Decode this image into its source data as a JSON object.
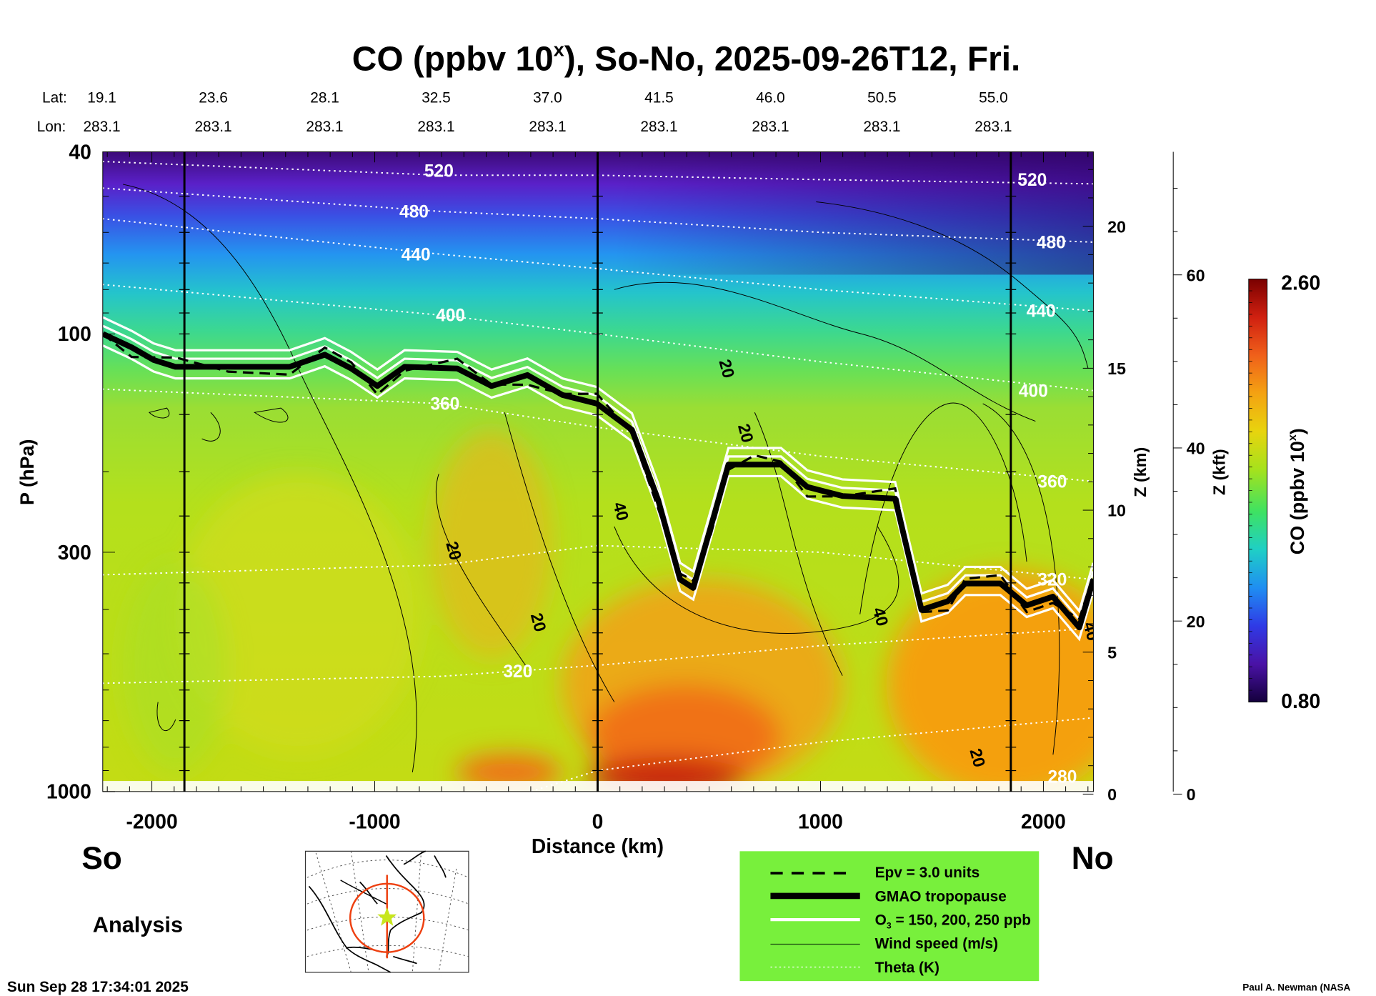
{
  "chart_data": {
    "type": "heatmap",
    "title_prefix": "CO (ppbv 10",
    "title_sup": "x",
    "title_suffix": "), So-No, 2025-09-26T12, Fri.",
    "lat_label": "Lat:",
    "lon_label": "Lon:",
    "lat_values": [
      "19.1",
      "23.6",
      "28.1",
      "32.5",
      "37.0",
      "41.5",
      "46.0",
      "50.5",
      "55.0"
    ],
    "lon_values": [
      "283.1",
      "283.1",
      "283.1",
      "283.1",
      "283.1",
      "283.1",
      "283.1",
      "283.1",
      "283.1"
    ],
    "xlabel": "Distance (km)",
    "ylabel": "P (hPa)",
    "xlim": [
      -2222,
      2222
    ],
    "ylim": [
      40,
      1000
    ],
    "yscale": "log",
    "x_ticks": [
      -2000,
      -1000,
      0,
      1000,
      2000
    ],
    "y_ticks": [
      40,
      100,
      300,
      1000
    ],
    "right_axis_km": {
      "label": "Z (km)",
      "ticks": [
        0,
        5,
        10,
        15,
        20
      ]
    },
    "right_axis_kft": {
      "label": "Z (kft)",
      "ticks": [
        0,
        20,
        40,
        60
      ]
    },
    "vertical_markers_km": [
      -1854,
      0,
      1854
    ],
    "colorbar": {
      "label_prefix": "CO (ppbv 10",
      "label_sup": "x",
      "label_suffix": ")",
      "min": "0.80",
      "max": "2.60",
      "colors": [
        "#14003c",
        "#4a12a6",
        "#2f3ae6",
        "#1f8ef2",
        "#1fcfc6",
        "#3ee262",
        "#a6e21c",
        "#e8d40e",
        "#f4a212",
        "#f0601a",
        "#d02010",
        "#7a0000"
      ]
    },
    "tropopause": [
      [
        -2220,
        100
      ],
      [
        -2091,
        107
      ],
      [
        -1992,
        114
      ],
      [
        -1894,
        118
      ],
      [
        -1657,
        118
      ],
      [
        -1382,
        118
      ],
      [
        -1224,
        111
      ],
      [
        -1106,
        119
      ],
      [
        -988,
        130
      ],
      [
        -866,
        118
      ],
      [
        -630,
        119
      ],
      [
        -476,
        130
      ],
      [
        -315,
        123
      ],
      [
        -157,
        136
      ],
      [
        -4,
        142
      ],
      [
        154,
        162
      ],
      [
        272,
        231
      ],
      [
        370,
        344
      ],
      [
        429,
        359
      ],
      [
        508,
        264
      ],
      [
        587,
        193
      ],
      [
        705,
        193
      ],
      [
        823,
        193
      ],
      [
        941,
        216
      ],
      [
        1098,
        226
      ],
      [
        1335,
        229
      ],
      [
        1453,
        401
      ],
      [
        1571,
        384
      ],
      [
        1650,
        351
      ],
      [
        1807,
        351
      ],
      [
        1925,
        392
      ],
      [
        2043,
        375
      ],
      [
        2161,
        438
      ],
      [
        2224,
        344
      ]
    ],
    "theta_lines": [
      {
        "label": "520",
        "km": [
          -2222,
          -700,
          0,
          1000,
          2222
        ],
        "p": [
          42,
          45,
          45,
          46,
          47
        ],
        "label_km": [
          -712,
          1950
        ],
        "label_p": [
          44,
          46
        ]
      },
      {
        "label": "480",
        "km": [
          -2222,
          -700,
          0,
          1000,
          2222
        ],
        "p": [
          48,
          54,
          56,
          60,
          63
        ],
        "label_km": [
          -824,
          2035
        ],
        "label_p": [
          54,
          63
        ]
      },
      {
        "label": "440",
        "km": [
          -2222,
          -700,
          0,
          1000,
          2222
        ],
        "p": [
          56,
          67,
          72,
          80,
          89
        ],
        "label_km": [
          -815,
          1990
        ],
        "label_p": [
          67,
          89
        ]
      },
      {
        "label": "400",
        "km": [
          -2222,
          -700,
          0,
          1000,
          2222
        ],
        "p": [
          78,
          91,
          100,
          115,
          133
        ],
        "label_km": [
          -660,
          1955
        ],
        "label_p": [
          91,
          133
        ]
      },
      {
        "label": "360",
        "km": [
          -2222,
          -700,
          0,
          1000,
          2222
        ],
        "p": [
          132,
          142,
          160,
          185,
          210
        ],
        "label_km": [
          -685,
          2040
        ],
        "label_p": [
          142,
          210
        ]
      },
      {
        "label": "320",
        "km": [
          -2222,
          -700,
          0,
          1000,
          2222
        ],
        "p": [
          336,
          320,
          290,
          300,
          344
        ],
        "label_km": [
          2040
        ],
        "label_p": [
          344
        ]
      },
      {
        "label": "320",
        "km": [
          -2222,
          -700,
          0,
          1000,
          2222
        ],
        "p": [
          580,
          560,
          530,
          480,
          440
        ],
        "label_km": [
          -358
        ],
        "label_p": [
          546
        ]
      },
      {
        "label": "280",
        "km": [
          -300,
          0,
          1000,
          2222
        ],
        "p": [
          1000,
          900,
          780,
          690
        ],
        "label_km": [
          2085
        ],
        "label_p": [
          927
        ]
      }
    ],
    "wind_labels": [
      {
        "label": "20",
        "km": 555,
        "p": 120
      },
      {
        "label": "20",
        "km": 640,
        "p": 166
      },
      {
        "label": "40",
        "km": 80,
        "p": 246
      },
      {
        "label": "20",
        "km": -670,
        "p": 300
      },
      {
        "label": "20",
        "km": -290,
        "p": 430
      },
      {
        "label": "40",
        "km": 1245,
        "p": 418
      },
      {
        "label": "20",
        "km": 1680,
        "p": 850
      },
      {
        "label": "40",
        "km": 2190,
        "p": 450
      }
    ]
  },
  "labels": {
    "south": "So",
    "north": "No",
    "analysis": "Analysis",
    "timestamp": "Sun Sep 28 17:34:01 2025",
    "credit": "Paul A. Newman (NASA"
  },
  "legend": {
    "items": [
      {
        "label": "Epv = 3.0 units",
        "style": "dashed"
      },
      {
        "label": "GMAO tropopause",
        "style": "thick"
      },
      {
        "label_prefix": "O",
        "label_sub": "3",
        "label_suffix": " = 150, 200, 250 ppb",
        "style": "white"
      },
      {
        "label": "Wind speed (m/s)",
        "style": "thin"
      },
      {
        "label": "Theta (K)",
        "style": "dotted"
      }
    ],
    "background": "#78f03c"
  }
}
